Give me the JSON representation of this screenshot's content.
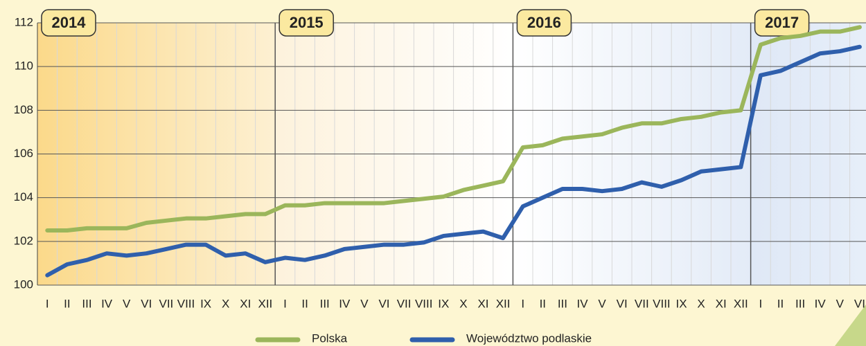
{
  "chart_data": {
    "type": "line",
    "categories": [
      "I",
      "II",
      "III",
      "IV",
      "V",
      "VI",
      "VII",
      "VIII",
      "IX",
      "X",
      "XI",
      "XII",
      "I",
      "II",
      "III",
      "IV",
      "V",
      "VI",
      "VII",
      "VIII",
      "IX",
      "X",
      "XI",
      "XII",
      "I",
      "II",
      "III",
      "IV",
      "V",
      "VI",
      "VII",
      "VIII",
      "IX",
      "X",
      "XI",
      "XII",
      "I",
      "II",
      "III",
      "IV",
      "V",
      "VI"
    ],
    "year_labels": [
      "2014",
      "2015",
      "2016",
      "2017"
    ],
    "series": [
      {
        "name": "Polska",
        "color": "#9bb65b",
        "values": [
          102.5,
          102.5,
          102.6,
          102.6,
          102.6,
          102.85,
          102.95,
          103.05,
          103.05,
          103.15,
          103.25,
          103.25,
          103.65,
          103.65,
          103.75,
          103.75,
          103.75,
          103.75,
          103.85,
          103.95,
          104.05,
          104.35,
          104.55,
          104.75,
          106.3,
          106.4,
          106.7,
          106.8,
          106.9,
          107.2,
          107.4,
          107.4,
          107.6,
          107.7,
          107.9,
          108.0,
          111.0,
          111.3,
          111.4,
          111.6,
          111.6,
          111.8
        ]
      },
      {
        "name": "Województwo podlaskie",
        "color": "#2f5fac",
        "values": [
          100.45,
          100.95,
          101.15,
          101.45,
          101.35,
          101.45,
          101.65,
          101.85,
          101.85,
          101.35,
          101.45,
          101.05,
          101.25,
          101.15,
          101.35,
          101.65,
          101.75,
          101.85,
          101.85,
          101.95,
          102.25,
          102.35,
          102.45,
          102.15,
          103.6,
          104.0,
          104.4,
          104.4,
          104.3,
          104.4,
          104.7,
          104.5,
          104.8,
          105.2,
          105.3,
          105.4,
          109.6,
          109.8,
          110.2,
          110.6,
          110.7,
          110.9
        ]
      }
    ],
    "ylim": [
      100,
      112
    ],
    "yticks": [
      100,
      102,
      104,
      106,
      108,
      110,
      112
    ],
    "grid": true
  }
}
